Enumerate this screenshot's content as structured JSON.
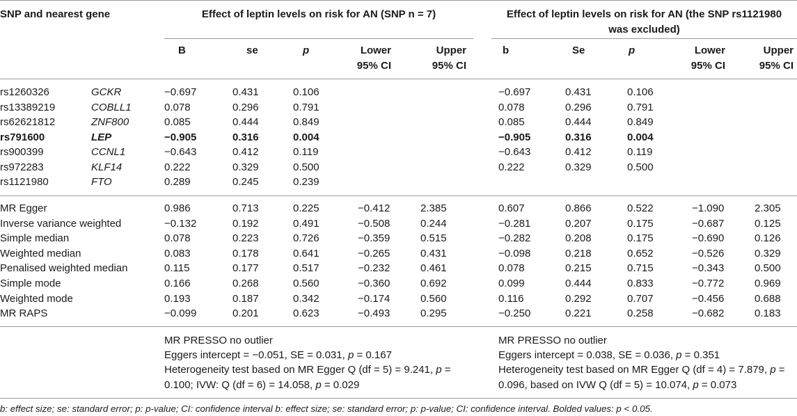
{
  "header": {
    "snp_col": "SNP and nearest gene",
    "group1_title": "Effect of leptin levels on risk for AN (SNP n = 7)",
    "group2_title_line1": "Effect of leptin levels on risk for AN (the SNP rs1121980",
    "group2_title_line2": "was excluded)",
    "g1_cols": {
      "b": "B",
      "se": "se",
      "p": "p",
      "lower_l1": "Lower",
      "lower_l2": "95% CI",
      "upper_l1": "Upper",
      "upper_l2": "95% CI"
    },
    "g2_cols": {
      "b": "b",
      "se": "Se",
      "p": "p",
      "lower_l1": "Lower",
      "lower_l2": "95% CI",
      "upper_l1": "Upper",
      "upper_l2": "95% CI"
    }
  },
  "snp_rows": [
    {
      "snp": "rs1260326",
      "gene": "GCKR",
      "b1": "−0.697",
      "se1": "0.431",
      "p1": "0.106",
      "b2": "−0.697",
      "se2": "0.431",
      "p2": "0.106",
      "bold": false
    },
    {
      "snp": "rs13389219",
      "gene": "COBLL1",
      "b1": "0.078",
      "se1": "0.296",
      "p1": "0.791",
      "b2": "0.078",
      "se2": "0.296",
      "p2": "0.791",
      "bold": false
    },
    {
      "snp": "rs62621812",
      "gene": "ZNF800",
      "b1": "0.085",
      "se1": "0.444",
      "p1": "0.849",
      "b2": "0.085",
      "se2": "0.444",
      "p2": "0.849",
      "bold": false
    },
    {
      "snp": "rs791600",
      "gene": "LEP",
      "b1": "−0.905",
      "se1": "0.316",
      "p1": "0.004",
      "b2": "−0.905",
      "se2": "0.316",
      "p2": "0.004",
      "bold": true
    },
    {
      "snp": "rs900399",
      "gene": "CCNL1",
      "b1": "−0.643",
      "se1": "0.412",
      "p1": "0.119",
      "b2": "−0.643",
      "se2": "0.412",
      "p2": "0.119",
      "bold": false
    },
    {
      "snp": "rs972283",
      "gene": "KLF14",
      "b1": "0.222",
      "se1": "0.329",
      "p1": "0.500",
      "b2": "0.222",
      "se2": "0.329",
      "p2": "0.500",
      "bold": false
    },
    {
      "snp": "rs1121980",
      "gene": "FTO",
      "b1": "0.289",
      "se1": "0.245",
      "p1": "0.239",
      "b2": "",
      "se2": "",
      "p2": "",
      "bold": false
    }
  ],
  "method_rows": [
    {
      "name": "MR Egger",
      "v": [
        "0.986",
        "0.713",
        "0.225",
        "−0.412",
        "2.385",
        "0.607",
        "0.866",
        "0.522",
        "−1.090",
        "2.305"
      ]
    },
    {
      "name": "Inverse variance weighted",
      "v": [
        "−0.132",
        "0.192",
        "0.491",
        "−0.508",
        "0.244",
        "−0.281",
        "0.207",
        "0.175",
        "−0.687",
        "0.125"
      ]
    },
    {
      "name": "Simple median",
      "v": [
        "0.078",
        "0.223",
        "0.726",
        "−0.359",
        "0.515",
        "−0.282",
        "0.208",
        "0.175",
        "−0.690",
        "0.126"
      ]
    },
    {
      "name": "Weighted median",
      "v": [
        "0.083",
        "0.178",
        "0.641",
        "−0.265",
        "0.431",
        "−0.098",
        "0.218",
        "0.652",
        "−0.526",
        "0.329"
      ]
    },
    {
      "name": "Penalised weighted median",
      "v": [
        "0.115",
        "0.177",
        "0.517",
        "−0.232",
        "0.461",
        "0.078",
        "0.215",
        "0.715",
        "−0.343",
        "0.500"
      ]
    },
    {
      "name": "Simple mode",
      "v": [
        "0.166",
        "0.268",
        "0.560",
        "−0.360",
        "0.692",
        "0.099",
        "0.444",
        "0.833",
        "−0.772",
        "0.969"
      ]
    },
    {
      "name": "Weighted mode",
      "v": [
        "0.193",
        "0.187",
        "0.342",
        "−0.174",
        "0.560",
        "0.116",
        "0.292",
        "0.707",
        "−0.456",
        "0.688"
      ]
    },
    {
      "name": "MR RAPS",
      "v": [
        "−0.099",
        "0.201",
        "0.623",
        "−0.493",
        "0.295",
        "−0.250",
        "0.221",
        "0.258",
        "−0.682",
        "0.183"
      ]
    }
  ],
  "presso": {
    "left": {
      "line1": "MR PRESSO no outlier",
      "l2_a": "Eggers intercept = −0.051, SE = 0.031, ",
      "l2_p": "p",
      "l2_b": " = 0.167",
      "l3_a": "Heterogeneity test based on MR Egger Q (df = 5) = 9.241, ",
      "l3_p": "p",
      "l3_b": " =",
      "l4_a": "0.100; IVW: Q (df = 6) = 14.058, ",
      "l4_p": "p",
      "l4_b": " = 0.029"
    },
    "right": {
      "line1": "MR PRESSO no outlier",
      "l2_a": "Eggers intercept = 0.038, SE = 0.036, ",
      "l2_p": "p",
      "l2_b": " = 0.351",
      "l3_a": "Heterogeneity test based on MR Egger Q (df = 4) = 7.879, ",
      "l3_p": "p",
      "l3_b": " =",
      "l4_a": "0.096, based on IVW Q (df = 5) = 10.074, ",
      "l4_p": "p",
      "l4_b": " = 0.073"
    }
  },
  "footnote": {
    "a": "b: effect size; se: standard error; p: p-value; CI: confidence interval b: effect size; se: standard error; p: p-value; CI: confidence interval. Bolded values: p ",
    "lt": "<",
    "b": " 0.05."
  }
}
